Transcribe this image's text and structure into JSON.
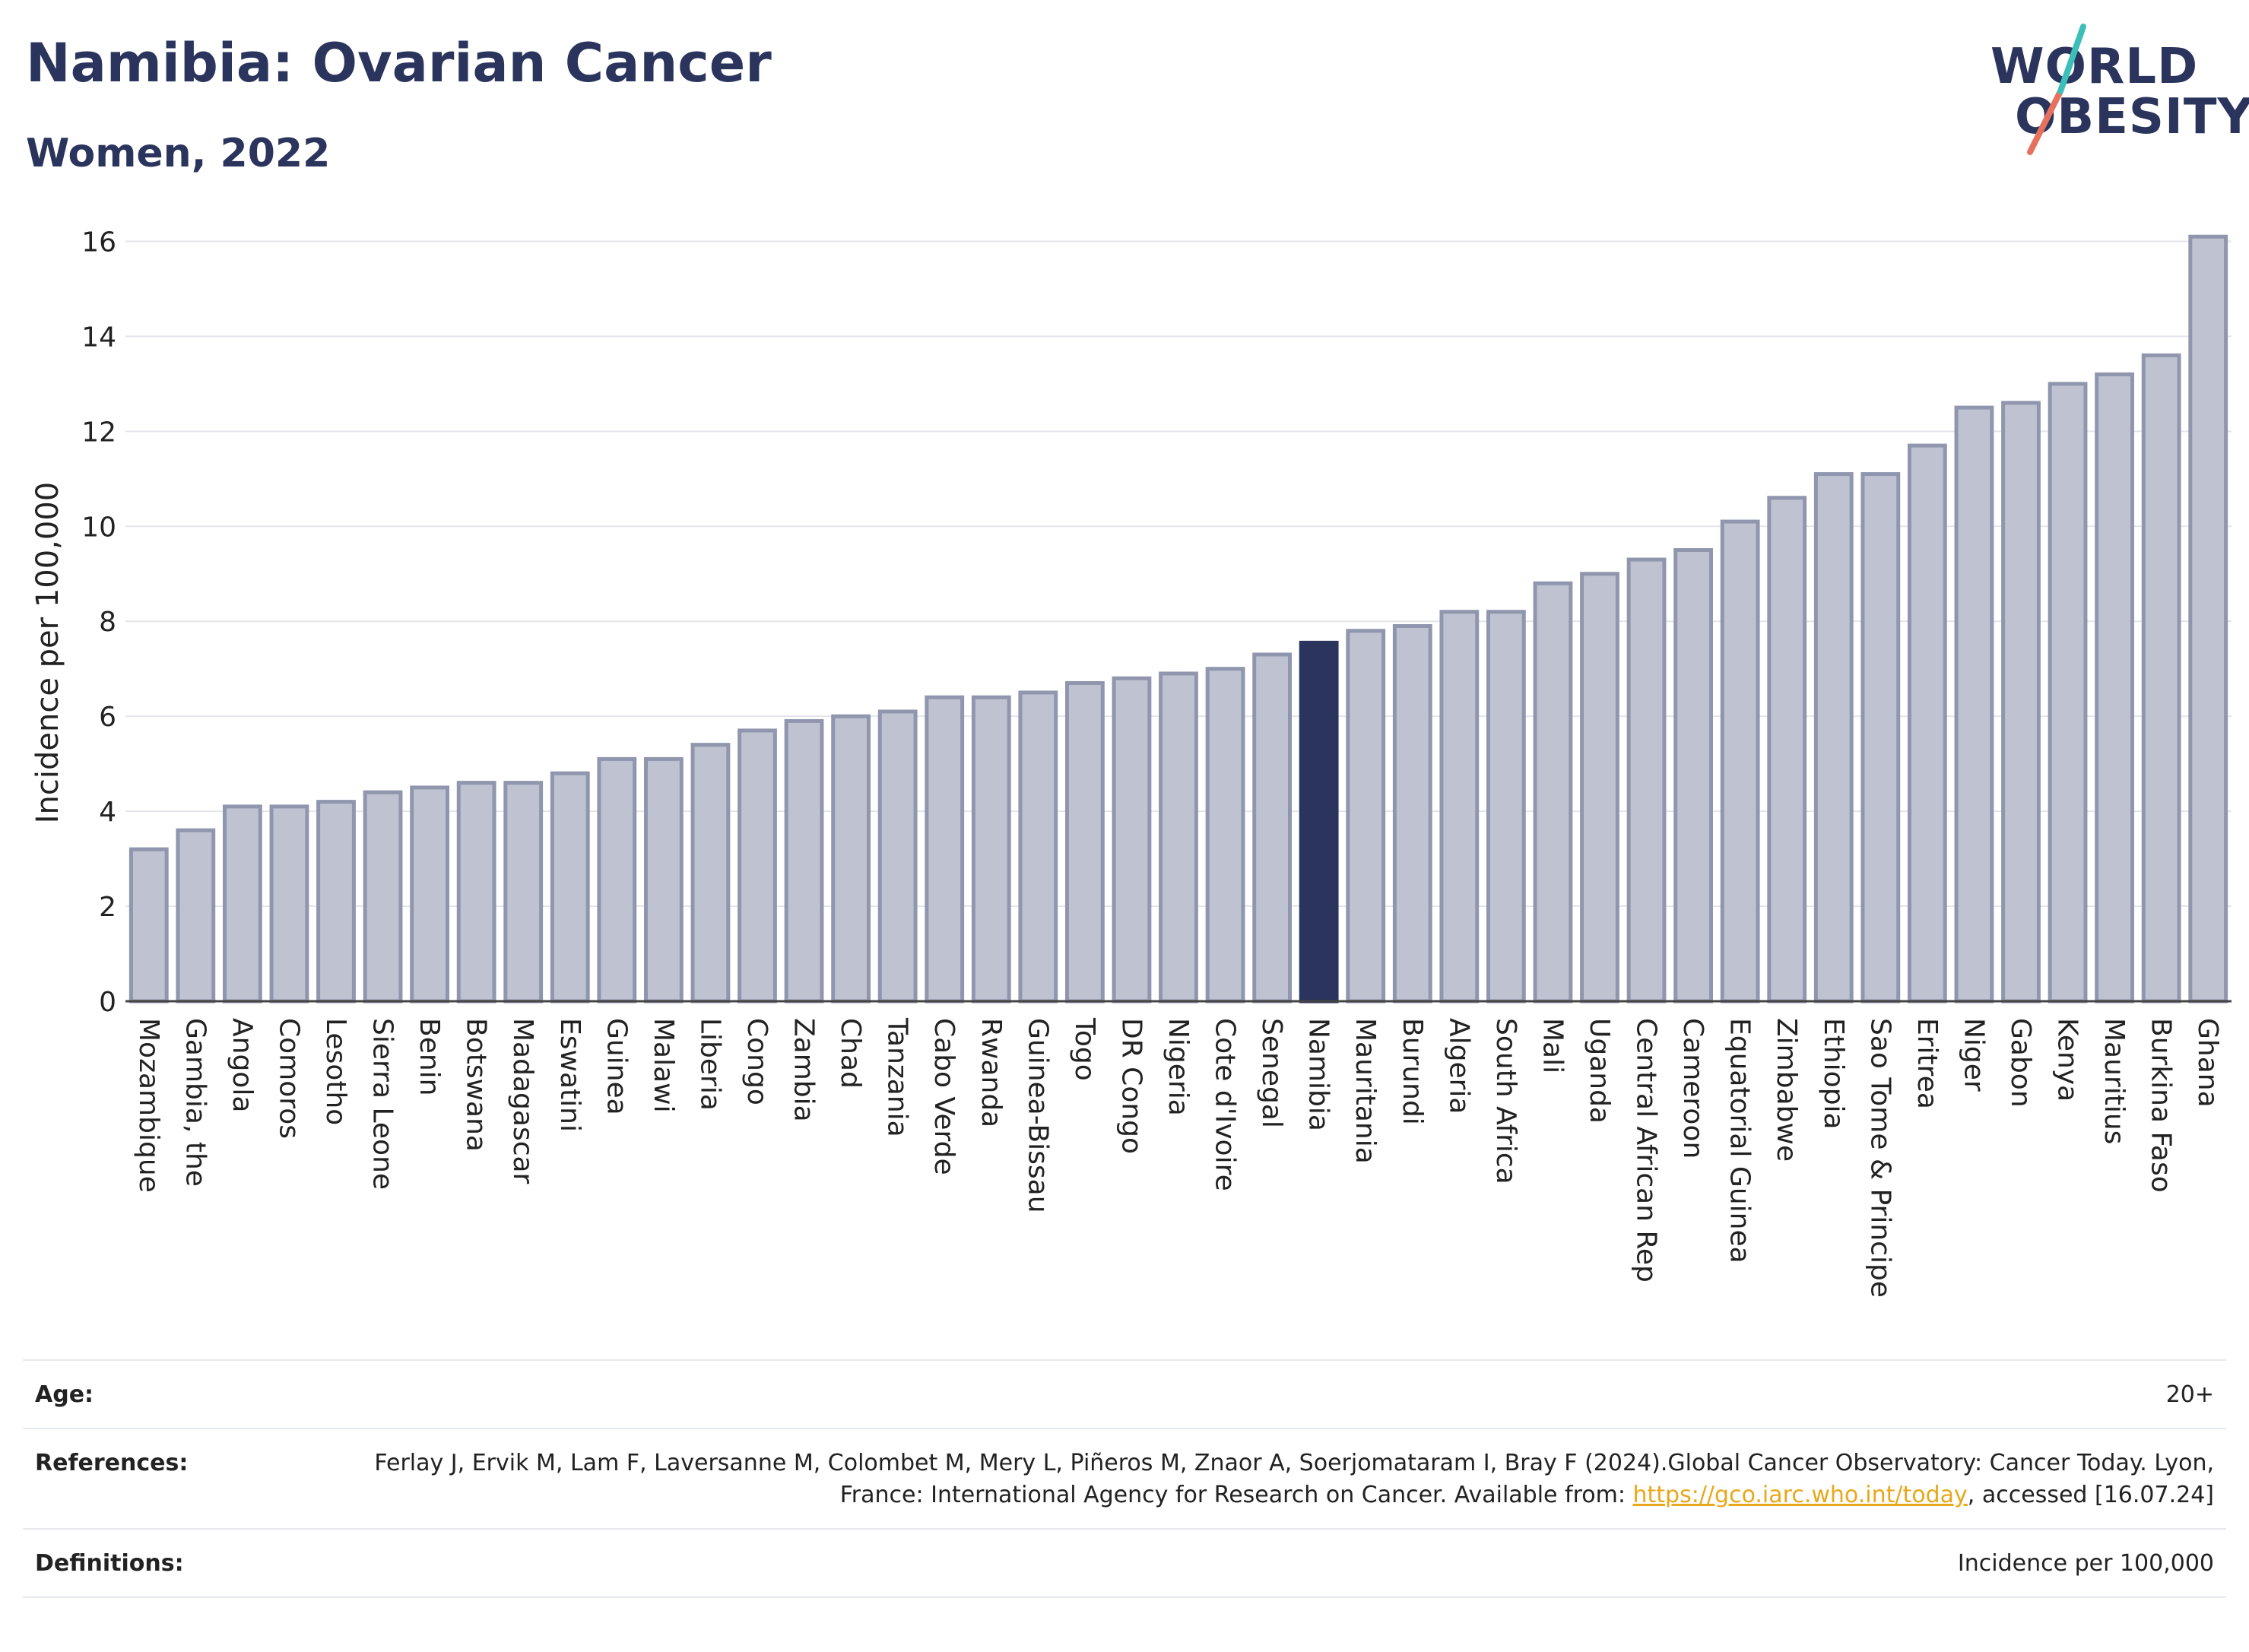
{
  "header": {
    "title": "Namibia: Ovarian Cancer",
    "subtitle": "Women, 2022"
  },
  "logo": {
    "line1": "WORLD",
    "line2": "OBESITY"
  },
  "chart_data": {
    "type": "bar",
    "ylabel": "Incidence per 100,000",
    "xlabel": "",
    "ylim": [
      0,
      16.6
    ],
    "yticks": [
      0,
      2,
      4,
      6,
      8,
      10,
      12,
      14,
      16
    ],
    "grid": true,
    "highlight": "Namibia",
    "colors": {
      "default": "#bfc3d1",
      "default_border": "#8f96ad",
      "highlight": "#2a345c"
    },
    "categories": [
      "Mozambique",
      "Gambia, the",
      "Angola",
      "Comoros",
      "Lesotho",
      "Sierra Leone",
      "Benin",
      "Botswana",
      "Madagascar",
      "Eswatini",
      "Guinea",
      "Malawi",
      "Liberia",
      "Congo",
      "Zambia",
      "Chad",
      "Tanzania",
      "Cabo Verde",
      "Rwanda",
      "Guinea-Bissau",
      "Togo",
      "DR Congo",
      "Nigeria",
      "Cote d'Ivoire",
      "Senegal",
      "Namibia",
      "Mauritania",
      "Burundi",
      "Algeria",
      "South Africa",
      "Mali",
      "Uganda",
      "Central African Rep",
      "Cameroon",
      "Equatorial Guinea",
      "Zimbabwe",
      "Ethiopia",
      "Sao Tome & Principe",
      "Eritrea",
      "Niger",
      "Gabon",
      "Kenya",
      "Mauritius",
      "Burkina Faso",
      "Ghana"
    ],
    "values": [
      3.2,
      3.6,
      4.1,
      4.1,
      4.2,
      4.4,
      4.5,
      4.6,
      4.6,
      4.8,
      5.1,
      5.1,
      5.4,
      5.7,
      5.9,
      6.0,
      6.1,
      6.4,
      6.4,
      6.5,
      6.7,
      6.8,
      6.9,
      7.0,
      7.3,
      7.55,
      7.8,
      7.9,
      8.2,
      8.2,
      8.8,
      9.0,
      9.3,
      9.5,
      10.1,
      10.6,
      11.1,
      11.1,
      11.7,
      12.5,
      12.6,
      13.0,
      13.2,
      13.6,
      16.1
    ]
  },
  "meta": {
    "age_key": "Age:",
    "age_val": "20+",
    "ref_key": "References:",
    "ref_text_1": "Ferlay J, Ervik M, Lam F, Laversanne M, Colombet M, Mery L, Piñeros M, Znaor A, Soerjomataram I, Bray F (2024).Global Cancer Observatory: Cancer Today. Lyon, France: International Agency for Research on Cancer. Available from: ",
    "ref_link": "https://gco.iarc.who.int/today",
    "ref_text_2": ", accessed [16.07.24]",
    "def_key": "Definitions:",
    "def_val": "Incidence per 100,000"
  }
}
